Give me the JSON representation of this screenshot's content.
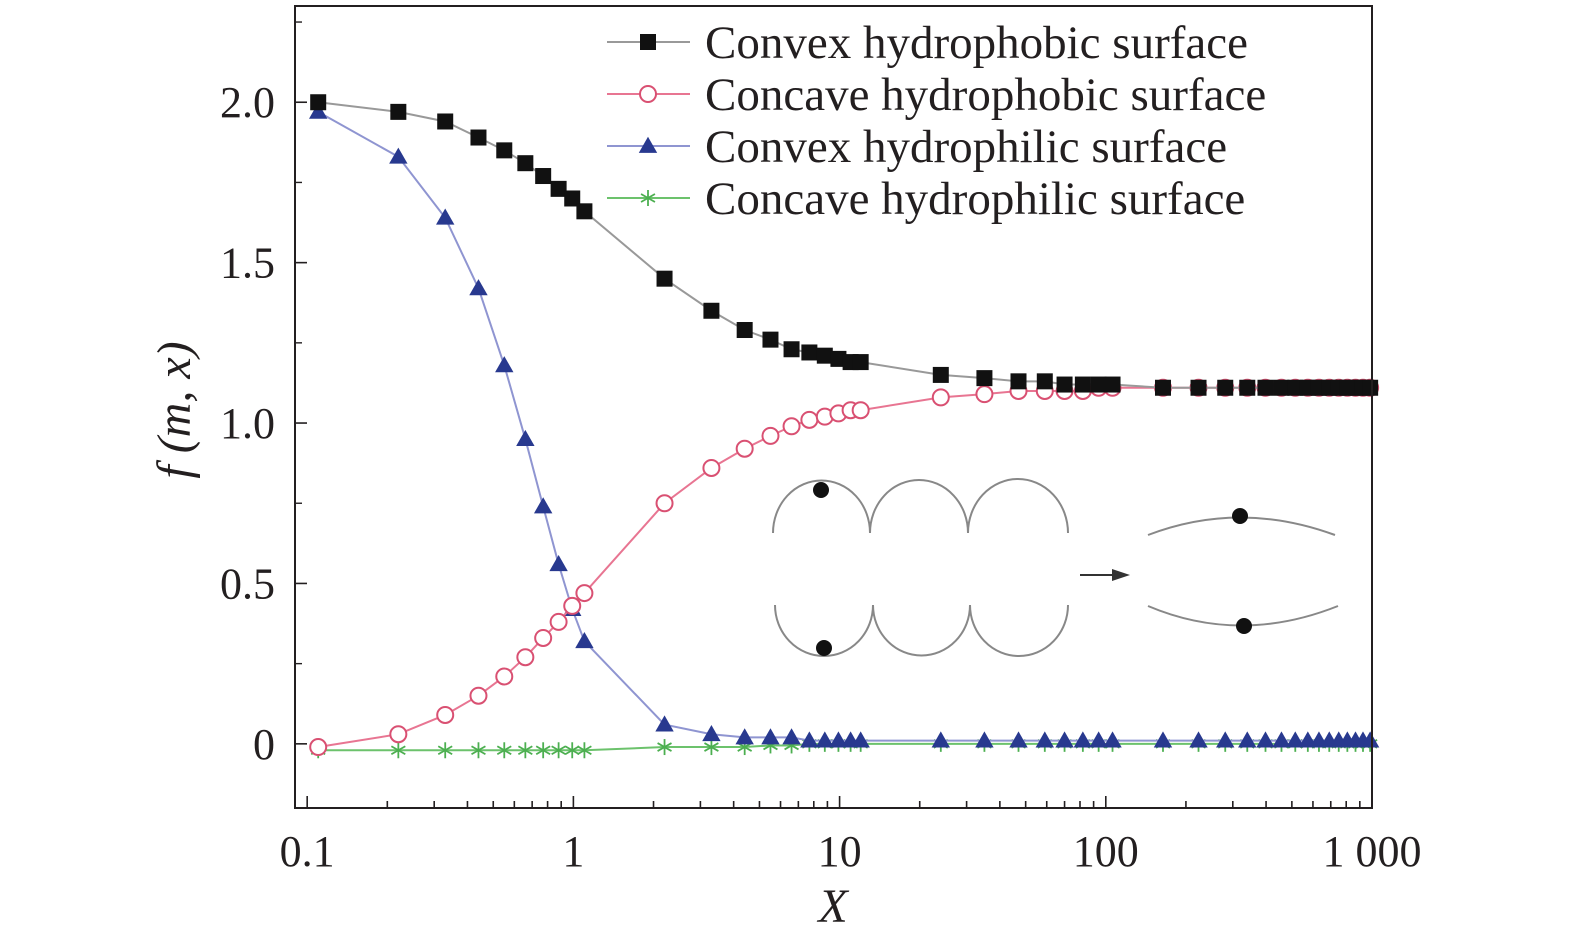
{
  "chart_data": {
    "type": "line",
    "xscale": "log",
    "xlabel": "X",
    "ylabel": "f (m, x)",
    "xlim": [
      0.09,
      1000
    ],
    "ylim": [
      -0.2,
      2.3
    ],
    "x_ticks": [
      {
        "value": 0.1,
        "label": "0.1"
      },
      {
        "value": 1,
        "label": "1"
      },
      {
        "value": 10,
        "label": "10"
      },
      {
        "value": 100,
        "label": "100"
      },
      {
        "value": 1000,
        "label": "1 000"
      }
    ],
    "y_ticks": [
      {
        "value": 0,
        "label": "0"
      },
      {
        "value": 0.5,
        "label": "0.5"
      },
      {
        "value": 1.0,
        "label": "1.0"
      },
      {
        "value": 1.5,
        "label": "1.5"
      },
      {
        "value": 2.0,
        "label": "2.0"
      }
    ],
    "series": [
      {
        "name": "Convex hydrophobic surface",
        "color": "#999999",
        "marker": "square",
        "marker_color": "#111111",
        "x": [
          0.11,
          0.22,
          0.33,
          0.44,
          0.55,
          0.66,
          0.77,
          0.88,
          0.99,
          1.1,
          2.2,
          3.3,
          4.4,
          5.5,
          6.6,
          7.7,
          8.8,
          9.9,
          11,
          12,
          24,
          35,
          47,
          59,
          70,
          82,
          94,
          106,
          164,
          223,
          281,
          340,
          398,
          457,
          515,
          574,
          632,
          691,
          750,
          808,
          867,
          925,
          984
        ],
        "y": [
          2.0,
          1.97,
          1.94,
          1.89,
          1.85,
          1.81,
          1.77,
          1.73,
          1.7,
          1.66,
          1.45,
          1.35,
          1.29,
          1.26,
          1.23,
          1.22,
          1.21,
          1.2,
          1.19,
          1.19,
          1.15,
          1.14,
          1.13,
          1.13,
          1.12,
          1.12,
          1.12,
          1.12,
          1.11,
          1.11,
          1.11,
          1.11,
          1.11,
          1.11,
          1.11,
          1.11,
          1.11,
          1.11,
          1.11,
          1.11,
          1.11,
          1.11,
          1.11
        ]
      },
      {
        "name": "Concave hydrophobic surface",
        "color": "#e87592",
        "marker": "circle-open",
        "marker_color": "#d95072",
        "x": [
          0.11,
          0.22,
          0.33,
          0.44,
          0.55,
          0.66,
          0.77,
          0.88,
          0.99,
          1.1,
          2.2,
          3.3,
          4.4,
          5.5,
          6.6,
          7.7,
          8.8,
          9.9,
          11,
          12,
          24,
          35,
          47,
          59,
          70,
          82,
          94,
          106,
          164,
          223,
          281,
          340,
          398,
          457,
          515,
          574,
          632,
          691,
          750,
          808,
          867,
          925,
          984
        ],
        "y": [
          -0.01,
          0.03,
          0.09,
          0.15,
          0.21,
          0.27,
          0.33,
          0.38,
          0.43,
          0.47,
          0.75,
          0.86,
          0.92,
          0.96,
          0.99,
          1.01,
          1.02,
          1.03,
          1.04,
          1.04,
          1.08,
          1.09,
          1.1,
          1.1,
          1.1,
          1.1,
          1.11,
          1.11,
          1.11,
          1.11,
          1.11,
          1.11,
          1.11,
          1.11,
          1.11,
          1.11,
          1.11,
          1.11,
          1.11,
          1.11,
          1.11,
          1.11,
          1.11
        ]
      },
      {
        "name": "Convex hydrophilic surface",
        "color": "#8f95d1",
        "marker": "triangle",
        "marker_color": "#28398f",
        "x": [
          0.11,
          0.22,
          0.33,
          0.44,
          0.55,
          0.66,
          0.77,
          0.88,
          0.99,
          1.1,
          2.2,
          3.3,
          4.4,
          5.5,
          6.6,
          7.7,
          8.8,
          9.9,
          11,
          12,
          24,
          35,
          47,
          59,
          70,
          82,
          94,
          106,
          164,
          223,
          281,
          340,
          398,
          457,
          515,
          574,
          632,
          691,
          750,
          808,
          867,
          925,
          984
        ],
        "y": [
          1.97,
          1.83,
          1.64,
          1.42,
          1.18,
          0.95,
          0.74,
          0.56,
          0.42,
          0.32,
          0.06,
          0.03,
          0.02,
          0.02,
          0.02,
          0.01,
          0.01,
          0.01,
          0.01,
          0.01,
          0.01,
          0.01,
          0.01,
          0.01,
          0.01,
          0.01,
          0.01,
          0.01,
          0.01,
          0.01,
          0.01,
          0.01,
          0.01,
          0.01,
          0.01,
          0.01,
          0.01,
          0.01,
          0.01,
          0.01,
          0.01,
          0.01,
          0.01
        ]
      },
      {
        "name": "Concave hydrophilic surface",
        "color": "#6cc26c",
        "marker": "asterisk",
        "marker_color": "#4caf50",
        "x": [
          0.11,
          0.22,
          0.33,
          0.44,
          0.55,
          0.66,
          0.77,
          0.88,
          0.99,
          1.1,
          2.2,
          3.3,
          4.4,
          5.5,
          6.6,
          7.7,
          8.8,
          9.9,
          11,
          12,
          24,
          35,
          47,
          59,
          70,
          82,
          94,
          106,
          164,
          223,
          281,
          340,
          398,
          457,
          515,
          574,
          632,
          691,
          750,
          808,
          867,
          925,
          984
        ],
        "y": [
          -0.02,
          -0.02,
          -0.02,
          -0.02,
          -0.02,
          -0.02,
          -0.02,
          -0.02,
          -0.02,
          -0.02,
          -0.01,
          -0.01,
          -0.01,
          -0.005,
          -0.005,
          0,
          0,
          0,
          0,
          0,
          0,
          0,
          0,
          0,
          0,
          0,
          0,
          0,
          0,
          0,
          0,
          0,
          0,
          0,
          0,
          0,
          0,
          0,
          0,
          0,
          0,
          0,
          0
        ]
      }
    ],
    "legend_position": "top-right",
    "inset": {
      "description_visible": false,
      "arrow": true
    }
  }
}
